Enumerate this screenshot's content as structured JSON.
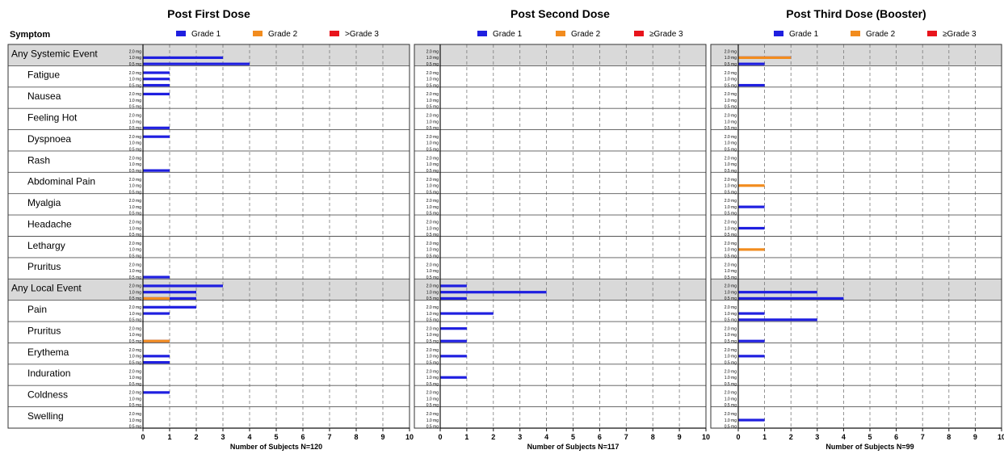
{
  "symptom_header": "Symptom",
  "symptoms": [
    "Any Systemic Event",
    "Fatigue",
    "Nausea",
    "Feeling Hot",
    "Dyspnoea",
    "Rash",
    "Abdominal Pain",
    "Myalgia",
    "Headache",
    "Lethargy",
    "Pruritus",
    "Any Local Event",
    "Pain",
    "Pruritus",
    "Erythema",
    "Induration",
    "Coldness",
    "Swelling"
  ],
  "summary_rows": [
    0,
    11
  ],
  "dose_labels": [
    "2.0 mg",
    "1.0 mg",
    "0.5 mg"
  ],
  "legend_items": [
    {
      "label": "Grade 1",
      "color": "#1f1fe0"
    },
    {
      "label": "Grade 2",
      "color": "#f28c1e"
    },
    {
      "label": "≥Grade 3",
      "color": "#e8141c"
    }
  ],
  "legend_first_grade3": ">Grade 3",
  "chart_data": [
    {
      "type": "bar",
      "title": "Post First Dose",
      "xlabel": "Number of Subjects N=120",
      "xlim": [
        0,
        10
      ],
      "xticks": [
        0,
        1,
        2,
        3,
        4,
        5,
        6,
        7,
        8,
        9,
        10
      ],
      "categories": [
        "Any Systemic Event",
        "Fatigue",
        "Nausea",
        "Feeling Hot",
        "Dyspnoea",
        "Rash",
        "Abdominal Pain",
        "Myalgia",
        "Headache",
        "Lethargy",
        "Pruritus",
        "Any Local Event",
        "Pain",
        "Pruritus",
        "Erythema",
        "Induration",
        "Coldness",
        "Swelling"
      ],
      "subcategories": [
        "2.0 mg",
        "1.0 mg",
        "0.5 mg"
      ],
      "series": [
        {
          "name": "Grade 1",
          "values": [
            [
              0,
              3,
              4
            ],
            [
              1,
              1,
              1
            ],
            [
              1,
              0,
              0
            ],
            [
              0,
              0,
              1
            ],
            [
              1,
              0,
              0
            ],
            [
              0,
              0,
              1
            ],
            [
              0,
              0,
              0
            ],
            [
              0,
              0,
              0
            ],
            [
              0,
              0,
              0
            ],
            [
              0,
              0,
              0
            ],
            [
              0,
              0,
              1
            ],
            [
              3,
              2,
              2
            ],
            [
              2,
              1,
              0
            ],
            [
              0,
              0,
              1
            ],
            [
              0,
              1,
              1
            ],
            [
              0,
              0,
              0
            ],
            [
              1,
              0,
              0
            ],
            [
              0,
              0,
              0
            ]
          ]
        },
        {
          "name": "Grade 2",
          "values": [
            [
              0,
              0,
              0
            ],
            [
              0,
              0,
              0
            ],
            [
              0,
              0,
              0
            ],
            [
              0,
              0,
              0
            ],
            [
              0,
              0,
              0
            ],
            [
              0,
              0,
              0
            ],
            [
              0,
              0,
              0
            ],
            [
              0,
              0,
              0
            ],
            [
              0,
              0,
              0
            ],
            [
              0,
              0,
              0
            ],
            [
              0,
              0,
              0
            ],
            [
              0,
              0,
              1
            ],
            [
              0,
              0,
              0
            ],
            [
              0,
              0,
              1
            ],
            [
              0,
              0,
              0
            ],
            [
              0,
              0,
              0
            ],
            [
              0,
              0,
              0
            ],
            [
              0,
              0,
              0
            ]
          ]
        },
        {
          "name": ">Grade 3",
          "values": [
            [
              0,
              0,
              0
            ],
            [
              0,
              0,
              0
            ],
            [
              0,
              0,
              0
            ],
            [
              0,
              0,
              0
            ],
            [
              0,
              0,
              0
            ],
            [
              0,
              0,
              0
            ],
            [
              0,
              0,
              0
            ],
            [
              0,
              0,
              0
            ],
            [
              0,
              0,
              0
            ],
            [
              0,
              0,
              0
            ],
            [
              0,
              0,
              0
            ],
            [
              0,
              0,
              0
            ],
            [
              0,
              0,
              0
            ],
            [
              0,
              0,
              0
            ],
            [
              0,
              0,
              0
            ],
            [
              0,
              0,
              0
            ],
            [
              0,
              0,
              0
            ],
            [
              0,
              0,
              0
            ]
          ]
        }
      ]
    },
    {
      "type": "bar",
      "title": "Post Second Dose",
      "xlabel": "Number of  Subjects N=117",
      "xlim": [
        0,
        10
      ],
      "xticks": [
        0,
        1,
        2,
        3,
        4,
        5,
        6,
        7,
        8,
        9,
        10
      ],
      "categories": [
        "Any Systemic Event",
        "Fatigue",
        "Nausea",
        "Feeling Hot",
        "Dyspnoea",
        "Rash",
        "Abdominal Pain",
        "Myalgia",
        "Headache",
        "Lethargy",
        "Pruritus",
        "Any Local Event",
        "Pain",
        "Pruritus",
        "Erythema",
        "Induration",
        "Coldness",
        "Swelling"
      ],
      "subcategories": [
        "2.0 mg",
        "1.0 mg",
        "0.5 mg"
      ],
      "series": [
        {
          "name": "Grade 1",
          "values": [
            [
              0,
              0,
              0
            ],
            [
              0,
              0,
              0
            ],
            [
              0,
              0,
              0
            ],
            [
              0,
              0,
              0
            ],
            [
              0,
              0,
              0
            ],
            [
              0,
              0,
              0
            ],
            [
              0,
              0,
              0
            ],
            [
              0,
              0,
              0
            ],
            [
              0,
              0,
              0
            ],
            [
              0,
              0,
              0
            ],
            [
              0,
              0,
              0
            ],
            [
              1,
              4,
              1
            ],
            [
              0,
              2,
              0
            ],
            [
              1,
              0,
              1
            ],
            [
              0,
              1,
              0
            ],
            [
              0,
              1,
              0
            ],
            [
              0,
              0,
              0
            ],
            [
              0,
              0,
              0
            ]
          ]
        },
        {
          "name": "Grade 2",
          "values": [
            [
              0,
              0,
              0
            ],
            [
              0,
              0,
              0
            ],
            [
              0,
              0,
              0
            ],
            [
              0,
              0,
              0
            ],
            [
              0,
              0,
              0
            ],
            [
              0,
              0,
              0
            ],
            [
              0,
              0,
              0
            ],
            [
              0,
              0,
              0
            ],
            [
              0,
              0,
              0
            ],
            [
              0,
              0,
              0
            ],
            [
              0,
              0,
              0
            ],
            [
              0,
              0,
              0
            ],
            [
              0,
              0,
              0
            ],
            [
              0,
              0,
              0
            ],
            [
              0,
              0,
              0
            ],
            [
              0,
              0,
              0
            ],
            [
              0,
              0,
              0
            ],
            [
              0,
              0,
              0
            ]
          ]
        },
        {
          "name": "≥Grade 3",
          "values": [
            [
              0,
              0,
              0
            ],
            [
              0,
              0,
              0
            ],
            [
              0,
              0,
              0
            ],
            [
              0,
              0,
              0
            ],
            [
              0,
              0,
              0
            ],
            [
              0,
              0,
              0
            ],
            [
              0,
              0,
              0
            ],
            [
              0,
              0,
              0
            ],
            [
              0,
              0,
              0
            ],
            [
              0,
              0,
              0
            ],
            [
              0,
              0,
              0
            ],
            [
              0,
              0,
              0
            ],
            [
              0,
              0,
              0
            ],
            [
              0,
              0,
              0
            ],
            [
              0,
              0,
              0
            ],
            [
              0,
              0,
              0
            ],
            [
              0,
              0,
              0
            ],
            [
              0,
              0,
              0
            ]
          ]
        }
      ]
    },
    {
      "type": "bar",
      "title": "Post Third Dose (Booster)",
      "xlabel": "Number of Subjects  N=99",
      "xlim": [
        0,
        10
      ],
      "xticks": [
        0,
        1,
        2,
        3,
        4,
        5,
        6,
        7,
        8,
        9,
        10
      ],
      "categories": [
        "Any Systemic Event",
        "Fatigue",
        "Nausea",
        "Feeling Hot",
        "Dyspnoea",
        "Rash",
        "Abdominal Pain",
        "Myalgia",
        "Headache",
        "Lethargy",
        "Pruritus",
        "Any Local Event",
        "Pain",
        "Pruritus",
        "Erythema",
        "Induration",
        "Coldness",
        "Swelling"
      ],
      "subcategories": [
        "2.0 mg",
        "1.0 mg",
        "0.5 mg"
      ],
      "series": [
        {
          "name": "Grade 1",
          "values": [
            [
              0,
              2,
              1
            ],
            [
              0,
              0,
              1
            ],
            [
              0,
              0,
              0
            ],
            [
              0,
              0,
              0
            ],
            [
              0,
              0,
              0
            ],
            [
              0,
              0,
              0
            ],
            [
              0,
              0,
              0
            ],
            [
              0,
              1,
              0
            ],
            [
              0,
              1,
              0
            ],
            [
              0,
              0,
              0
            ],
            [
              0,
              0,
              0
            ],
            [
              0,
              3,
              4
            ],
            [
              0,
              1,
              3
            ],
            [
              0,
              0,
              1
            ],
            [
              0,
              1,
              0
            ],
            [
              0,
              0,
              0
            ],
            [
              0,
              0,
              0
            ],
            [
              0,
              1,
              0
            ]
          ]
        },
        {
          "name": "Grade 2",
          "values": [
            [
              0,
              2,
              0
            ],
            [
              0,
              0,
              0
            ],
            [
              0,
              0,
              0
            ],
            [
              0,
              0,
              0
            ],
            [
              0,
              0,
              0
            ],
            [
              0,
              0,
              0
            ],
            [
              0,
              1,
              0
            ],
            [
              0,
              0,
              0
            ],
            [
              0,
              0,
              0
            ],
            [
              0,
              1,
              0
            ],
            [
              0,
              0,
              0
            ],
            [
              0,
              0,
              0
            ],
            [
              0,
              0,
              0
            ],
            [
              0,
              0,
              0
            ],
            [
              0,
              0,
              0
            ],
            [
              0,
              0,
              0
            ],
            [
              0,
              0,
              0
            ],
            [
              0,
              0,
              0
            ]
          ]
        },
        {
          "name": "≥Grade 3",
          "values": [
            [
              0,
              0,
              0
            ],
            [
              0,
              0,
              0
            ],
            [
              0,
              0,
              0
            ],
            [
              0,
              0,
              0
            ],
            [
              0,
              0,
              0
            ],
            [
              0,
              0,
              0
            ],
            [
              0,
              0,
              0
            ],
            [
              0,
              0,
              0
            ],
            [
              0,
              0,
              0
            ],
            [
              0,
              0,
              0
            ],
            [
              0,
              0,
              0
            ],
            [
              0,
              0,
              0
            ],
            [
              0,
              0,
              0
            ],
            [
              0,
              0,
              0
            ],
            [
              0,
              0,
              0
            ],
            [
              0,
              0,
              0
            ],
            [
              0,
              0,
              0
            ],
            [
              0,
              0,
              0
            ]
          ]
        }
      ]
    }
  ]
}
